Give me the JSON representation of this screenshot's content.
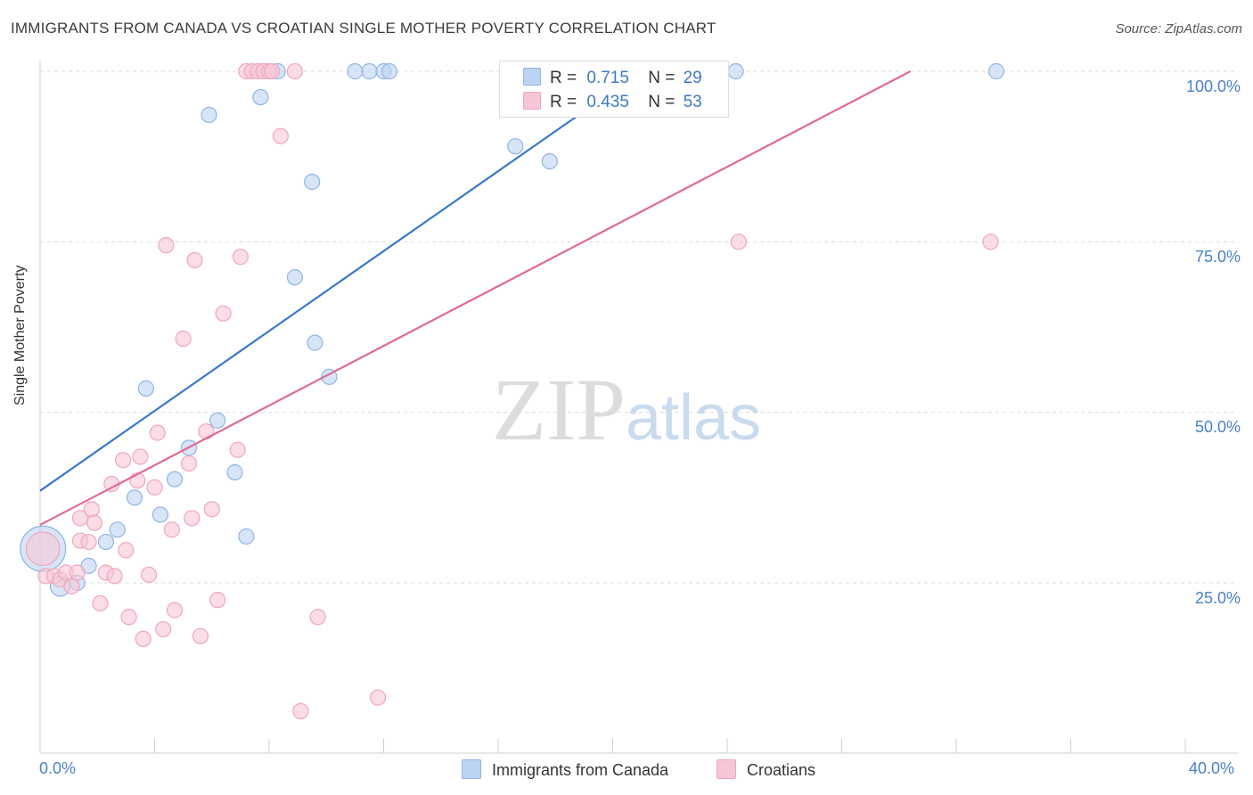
{
  "header": {
    "title": "IMMIGRANTS FROM CANADA VS CROATIAN SINGLE MOTHER POVERTY CORRELATION CHART",
    "source": "Source: ZipAtlas.com"
  },
  "watermark": {
    "zip": "ZIP",
    "atlas": "atlas"
  },
  "legend": {
    "canada": {
      "r_label": "R =",
      "r_value": "0.715",
      "n_label": "N =",
      "n_value": "29"
    },
    "croatians": {
      "r_label": "R =",
      "r_value": "0.435",
      "n_label": "N =",
      "n_value": "53"
    }
  },
  "colors": {
    "canada_fill": "#bcd4f2",
    "canada_stroke": "#8fb4e6",
    "canada_line": "#3a78c9",
    "croatians_fill": "#f7c6d4",
    "croatians_stroke": "#efa6bd",
    "croatians_line": "#e06a92",
    "tick_text": "#4a80c8"
  },
  "chart_data": {
    "type": "scatter",
    "title": "IMMIGRANTS FROM CANADA VS CROATIAN SINGLE MOTHER POVERTY CORRELATION CHART",
    "xlabel": "",
    "ylabel": "Single Mother Poverty",
    "xlim": [
      0,
      40
    ],
    "ylim": [
      0,
      102
    ],
    "x_tick_labels": [
      "0.0%",
      "40.0%"
    ],
    "y_ticks": [
      25,
      50,
      75,
      100
    ],
    "y_tick_labels": [
      "25.0%",
      "50.0%",
      "75.0%",
      "100.0%"
    ],
    "grid": true,
    "legend_position": "top-center",
    "series": [
      {
        "name": "Immigrants from Canada",
        "r": 0.715,
        "n": 29,
        "trend": {
          "x0": 0,
          "y0": 38.5,
          "x1": 21,
          "y1": 100
        },
        "points": [
          {
            "x": 0.1,
            "y": 30.0,
            "s": 3
          },
          {
            "x": 0.7,
            "y": 24.5,
            "s": 1.3
          },
          {
            "x": 1.3,
            "y": 25.0,
            "s": 1
          },
          {
            "x": 1.7,
            "y": 27.5,
            "s": 1
          },
          {
            "x": 2.3,
            "y": 31.0,
            "s": 1
          },
          {
            "x": 2.7,
            "y": 32.8,
            "s": 1
          },
          {
            "x": 3.3,
            "y": 37.5,
            "s": 1
          },
          {
            "x": 3.7,
            "y": 53.5,
            "s": 1
          },
          {
            "x": 4.2,
            "y": 35.0,
            "s": 1
          },
          {
            "x": 4.7,
            "y": 40.2,
            "s": 1
          },
          {
            "x": 5.2,
            "y": 44.8,
            "s": 1
          },
          {
            "x": 5.9,
            "y": 93.6,
            "s": 1
          },
          {
            "x": 6.2,
            "y": 48.8,
            "s": 1
          },
          {
            "x": 6.8,
            "y": 41.2,
            "s": 1
          },
          {
            "x": 7.2,
            "y": 31.8,
            "s": 1
          },
          {
            "x": 7.7,
            "y": 96.2,
            "s": 1
          },
          {
            "x": 8.3,
            "y": 100.0,
            "s": 1
          },
          {
            "x": 8.9,
            "y": 69.8,
            "s": 1
          },
          {
            "x": 9.5,
            "y": 83.8,
            "s": 1
          },
          {
            "x": 9.6,
            "y": 60.2,
            "s": 1
          },
          {
            "x": 10.1,
            "y": 55.2,
            "s": 1
          },
          {
            "x": 11.0,
            "y": 100.0,
            "s": 1
          },
          {
            "x": 11.5,
            "y": 100.0,
            "s": 1
          },
          {
            "x": 12.0,
            "y": 100.0,
            "s": 1
          },
          {
            "x": 12.2,
            "y": 100.0,
            "s": 1
          },
          {
            "x": 16.6,
            "y": 89.0,
            "s": 1
          },
          {
            "x": 17.8,
            "y": 86.8,
            "s": 1
          },
          {
            "x": 24.3,
            "y": 100.0,
            "s": 1
          },
          {
            "x": 33.4,
            "y": 100.0,
            "s": 1
          }
        ]
      },
      {
        "name": "Croatians",
        "r": 0.435,
        "n": 53,
        "trend": {
          "x0": 0,
          "y0": 33.5,
          "x1": 30.4,
          "y1": 100
        },
        "points": [
          {
            "x": 0.1,
            "y": 30.0,
            "s": 2.2
          },
          {
            "x": 0.2,
            "y": 26.0,
            "s": 1
          },
          {
            "x": 0.5,
            "y": 26.0,
            "s": 1
          },
          {
            "x": 0.7,
            "y": 25.5,
            "s": 1
          },
          {
            "x": 0.9,
            "y": 26.5,
            "s": 1
          },
          {
            "x": 1.1,
            "y": 24.5,
            "s": 1
          },
          {
            "x": 1.3,
            "y": 26.5,
            "s": 1
          },
          {
            "x": 1.4,
            "y": 31.2,
            "s": 1
          },
          {
            "x": 1.4,
            "y": 34.5,
            "s": 1
          },
          {
            "x": 1.7,
            "y": 31.0,
            "s": 1
          },
          {
            "x": 1.8,
            "y": 35.8,
            "s": 1
          },
          {
            "x": 1.9,
            "y": 33.8,
            "s": 1
          },
          {
            "x": 2.1,
            "y": 22.0,
            "s": 1
          },
          {
            "x": 2.3,
            "y": 26.5,
            "s": 1
          },
          {
            "x": 2.5,
            "y": 39.5,
            "s": 1
          },
          {
            "x": 2.6,
            "y": 26.0,
            "s": 1
          },
          {
            "x": 2.9,
            "y": 43.0,
            "s": 1
          },
          {
            "x": 3.0,
            "y": 29.8,
            "s": 1
          },
          {
            "x": 3.1,
            "y": 20.0,
            "s": 1
          },
          {
            "x": 3.4,
            "y": 40.0,
            "s": 1
          },
          {
            "x": 3.5,
            "y": 43.5,
            "s": 1
          },
          {
            "x": 3.6,
            "y": 16.8,
            "s": 1
          },
          {
            "x": 3.8,
            "y": 26.2,
            "s": 1
          },
          {
            "x": 4.0,
            "y": 39.0,
            "s": 1
          },
          {
            "x": 4.1,
            "y": 47.0,
            "s": 1
          },
          {
            "x": 4.3,
            "y": 18.2,
            "s": 1
          },
          {
            "x": 4.4,
            "y": 74.5,
            "s": 1
          },
          {
            "x": 4.6,
            "y": 32.8,
            "s": 1
          },
          {
            "x": 4.7,
            "y": 21.0,
            "s": 1
          },
          {
            "x": 5.0,
            "y": 60.8,
            "s": 1
          },
          {
            "x": 5.2,
            "y": 42.5,
            "s": 1
          },
          {
            "x": 5.3,
            "y": 34.5,
            "s": 1
          },
          {
            "x": 5.4,
            "y": 72.3,
            "s": 1
          },
          {
            "x": 5.6,
            "y": 17.2,
            "s": 1
          },
          {
            "x": 5.8,
            "y": 47.2,
            "s": 1
          },
          {
            "x": 6.0,
            "y": 35.8,
            "s": 1
          },
          {
            "x": 6.2,
            "y": 22.5,
            "s": 1
          },
          {
            "x": 6.4,
            "y": 64.5,
            "s": 1
          },
          {
            "x": 6.9,
            "y": 44.5,
            "s": 1
          },
          {
            "x": 7.0,
            "y": 72.8,
            "s": 1
          },
          {
            "x": 7.2,
            "y": 100.0,
            "s": 1
          },
          {
            "x": 7.4,
            "y": 100.0,
            "s": 1
          },
          {
            "x": 7.6,
            "y": 100.0,
            "s": 1
          },
          {
            "x": 7.8,
            "y": 100.0,
            "s": 1
          },
          {
            "x": 8.0,
            "y": 100.0,
            "s": 1
          },
          {
            "x": 8.1,
            "y": 100.0,
            "s": 1
          },
          {
            "x": 8.4,
            "y": 90.5,
            "s": 1
          },
          {
            "x": 8.9,
            "y": 100.0,
            "s": 1
          },
          {
            "x": 9.1,
            "y": 6.2,
            "s": 1
          },
          {
            "x": 9.7,
            "y": 20.0,
            "s": 1
          },
          {
            "x": 11.8,
            "y": 8.2,
            "s": 1
          },
          {
            "x": 24.4,
            "y": 75.0,
            "s": 1
          },
          {
            "x": 33.2,
            "y": 75.0,
            "s": 1
          }
        ]
      }
    ],
    "bottom_legend": [
      "Immigrants from Canada",
      "Croatians"
    ]
  }
}
